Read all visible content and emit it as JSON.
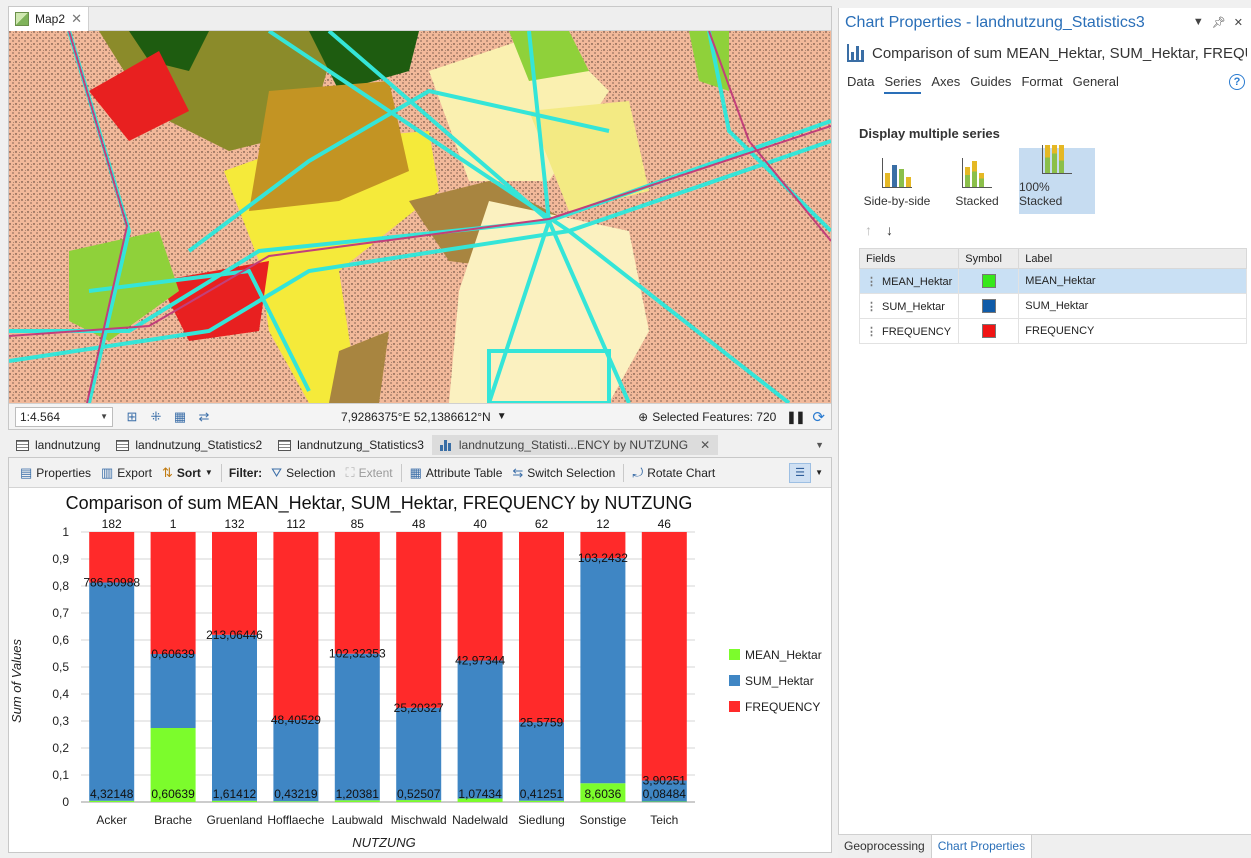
{
  "map": {
    "tab_label": "Map2",
    "scale": "1:4.564",
    "coordinates": "7,9286375°E 52,1386612°N",
    "selected_features": "Selected Features: 720"
  },
  "view_tabs": [
    {
      "label": "landnutzung"
    },
    {
      "label": "landnutzung_Statistics2"
    },
    {
      "label": "landnutzung_Statistics3"
    },
    {
      "label": "landnutzung_Statisti...ENCY by NUTZUNG"
    }
  ],
  "toolbar": {
    "properties": "Properties",
    "export": "Export",
    "sort": "Sort",
    "filter": "Filter:",
    "selection": "Selection",
    "extent": "Extent",
    "attribute_table": "Attribute Table",
    "switch_selection": "Switch Selection",
    "rotate_chart": "Rotate Chart"
  },
  "chart_data": {
    "type": "bar",
    "stacking": "100% stacked",
    "title": "Comparison of sum MEAN_Hektar, SUM_Hektar, FREQUENCY by NUTZUNG",
    "xlabel": "NUTZUNG",
    "ylabel": "Sum of Values",
    "ylim": [
      0,
      1
    ],
    "yticks": [
      "0",
      "0,1",
      "0,2",
      "0,3",
      "0,4",
      "0,5",
      "0,6",
      "0,7",
      "0,8",
      "0,9",
      "1"
    ],
    "categories": [
      "Acker",
      "Brache",
      "Gruenland",
      "Hofflaeche",
      "Laubwald",
      "Mischwald",
      "Nadelwald",
      "Siedlung",
      "Sonstige",
      "Teich"
    ],
    "series": [
      {
        "name": "MEAN_Hektar",
        "color": "#7CFC2C",
        "labels": [
          "4,32148",
          "0,60639",
          "1,61412",
          "0,43219",
          "1,20381",
          "0,52507",
          "1,07434",
          "0,41251",
          "8,6036",
          "0,08484"
        ],
        "values": [
          4.32148,
          0.60639,
          1.61412,
          0.43219,
          1.20381,
          0.52507,
          1.07434,
          0.41251,
          8.6036,
          0.08484
        ]
      },
      {
        "name": "SUM_Hektar",
        "color": "#3F86C4",
        "labels": [
          "786,50988",
          "0,60639",
          "213,06446",
          "48,40529",
          "102,32353",
          "25,20327",
          "42,97344",
          "25,5759",
          "103,2432",
          "3,90251"
        ],
        "values": [
          786.50988,
          0.60639,
          213.06446,
          48.40529,
          102.32353,
          25.20327,
          42.97344,
          25.5759,
          103.2432,
          3.90251
        ]
      },
      {
        "name": "FREQUENCY",
        "color": "#FF2A2A",
        "labels": [
          "182",
          "1",
          "132",
          "112",
          "85",
          "48",
          "40",
          "62",
          "12",
          "46"
        ],
        "values": [
          182,
          1,
          132,
          112,
          85,
          48,
          40,
          62,
          12,
          46
        ]
      }
    ],
    "legend_position": "right",
    "grid": true
  },
  "props": {
    "title": "Chart Properties - landnutzung_Statistics3",
    "subtitle": "Comparison of sum MEAN_Hektar, SUM_Hektar, FREQU...",
    "tabs": [
      "Data",
      "Series",
      "Axes",
      "Guides",
      "Format",
      "General"
    ],
    "active_tab": "Series",
    "section": "Display multiple series",
    "modes": [
      "Side-by-side",
      "Stacked",
      "100% Stacked"
    ],
    "table_headers": [
      "Fields",
      "Symbol",
      "Label"
    ],
    "rows": [
      {
        "field": "MEAN_Hektar",
        "color": "#35E81A",
        "label": "MEAN_Hektar"
      },
      {
        "field": "SUM_Hektar",
        "color": "#0F5BA8",
        "label": "SUM_Hektar"
      },
      {
        "field": "FREQUENCY",
        "color": "#F01414",
        "label": "FREQUENCY"
      }
    ]
  },
  "bottom_tabs": [
    "Geoprocessing",
    "Chart Properties"
  ]
}
